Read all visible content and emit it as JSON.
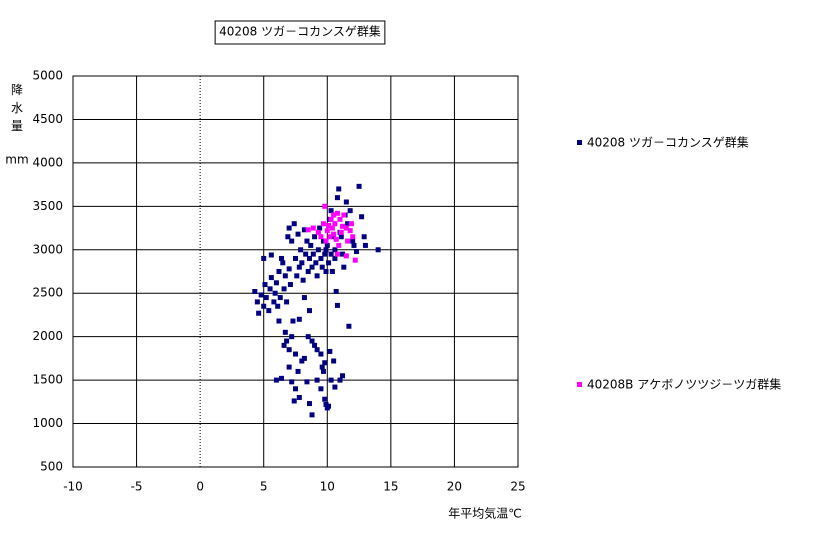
{
  "chart_data": {
    "type": "scatter",
    "title": "40208 ツガ－コカンスゲ群集",
    "xlabel": "年平均気温℃",
    "ylabel": "降水量",
    "yunit": "mm",
    "xlim": [
      -10,
      25
    ],
    "xticks": [
      -10,
      -5,
      0,
      5,
      10,
      15,
      20,
      25
    ],
    "ylim": [
      500,
      5000
    ],
    "yticks": [
      500,
      1000,
      1500,
      2000,
      2500,
      3000,
      3500,
      4000,
      4500,
      5000
    ],
    "grid": true,
    "legend": "right",
    "series": [
      {
        "name": "40208 ツガ－コカンスゲ群集",
        "color": "#000080",
        "x": [
          4.3,
          4.5,
          4.6,
          4.8,
          5.0,
          5.1,
          5.2,
          5.4,
          5.5,
          5.6,
          5.8,
          5.9,
          6.0,
          6.1,
          6.2,
          6.3,
          6.5,
          6.6,
          6.7,
          6.8,
          5.0,
          5.6,
          6.2,
          7.0,
          7.1,
          7.3,
          7.5,
          7.6,
          7.8,
          7.9,
          8.0,
          8.1,
          8.2,
          8.3,
          8.4,
          8.5,
          8.6,
          8.7,
          8.8,
          8.9,
          9.0,
          9.1,
          9.2,
          9.3,
          9.4,
          9.5,
          9.6,
          9.7,
          9.8,
          9.9,
          10.0,
          10.1,
          10.2,
          10.3,
          10.4,
          10.5,
          10.6,
          10.7,
          10.8,
          10.9,
          11.0,
          11.2,
          11.4,
          11.5,
          11.7,
          11.8,
          12.0,
          12.3,
          12.5,
          12.7,
          12.9,
          13.0,
          14.0,
          10.8,
          11.3,
          7.0,
          7.4,
          7.2,
          6.9,
          7.7,
          8.2,
          6.4,
          8.6,
          7.8,
          9.9,
          10.3,
          10.6,
          11.1,
          11.6,
          12.1,
          6.7,
          6.8,
          6.6,
          7.0,
          7.2,
          7.5,
          8.2,
          8.5,
          8.8,
          9.0,
          9.2,
          9.5,
          9.8,
          10.2,
          10.5,
          6.0,
          6.4,
          7.0,
          7.5,
          7.8,
          7.4,
          8.6,
          8.8,
          9.2,
          9.5,
          9.7,
          9.8,
          10.0,
          9.9,
          10.1,
          10.3,
          11.0,
          11.2,
          10.6,
          8.0,
          7.7,
          9.6,
          7.2,
          8.4
        ],
        "values": [
          2520,
          2400,
          2270,
          2480,
          2350,
          2600,
          2450,
          2300,
          2550,
          2680,
          2400,
          2500,
          2620,
          2350,
          2750,
          2450,
          2850,
          2550,
          2700,
          2400,
          2900,
          2940,
          2180,
          2780,
          2600,
          2180,
          2900,
          2700,
          2800,
          3000,
          2850,
          2650,
          2450,
          2950,
          3100,
          2750,
          2900,
          3050,
          2800,
          2950,
          3150,
          2850,
          2700,
          3000,
          3250,
          2900,
          2800,
          3100,
          2950,
          2750,
          3050,
          2850,
          3350,
          2950,
          2750,
          3150,
          2900,
          2520,
          3600,
          3700,
          3200,
          2950,
          3400,
          3550,
          2120,
          3450,
          3100,
          2980,
          3730,
          3380,
          3150,
          3050,
          3000,
          2360,
          2800,
          3250,
          3300,
          3100,
          3150,
          3180,
          3230,
          2900,
          2300,
          2200,
          3000,
          3450,
          3000,
          3150,
          3300,
          3050,
          2050,
          1950,
          1900,
          1850,
          2000,
          1800,
          1750,
          2000,
          1950,
          1900,
          1850,
          1800,
          1700,
          1830,
          1720,
          1500,
          1520,
          1650,
          1400,
          1300,
          1260,
          1230,
          1100,
          1500,
          1400,
          1600,
          1280,
          1180,
          1220,
          1200,
          1500,
          1500,
          1550,
          1420,
          1720,
          1600,
          1650,
          1480,
          1480
        ]
      },
      {
        "name": "40208B アケボノツツジ－ツガ群集",
        "color": "#ff00ff",
        "x": [
          8.5,
          8.9,
          9.3,
          9.5,
          9.7,
          9.8,
          9.9,
          10.0,
          10.1,
          10.2,
          10.3,
          10.4,
          10.5,
          10.6,
          10.7,
          10.8,
          10.9,
          11.0,
          11.1,
          11.2,
          11.3,
          11.5,
          11.6,
          11.8,
          12.0,
          12.2,
          11.5,
          10.8,
          11.9,
          10.5
        ],
        "values": [
          3230,
          3250,
          3200,
          3150,
          3300,
          3500,
          3100,
          3220,
          3280,
          3150,
          3350,
          3250,
          3180,
          3300,
          3120,
          3420,
          3050,
          3350,
          3200,
          3270,
          3400,
          3250,
          3100,
          3220,
          3150,
          2880,
          2930,
          2950,
          3300,
          3400
        ]
      }
    ]
  }
}
